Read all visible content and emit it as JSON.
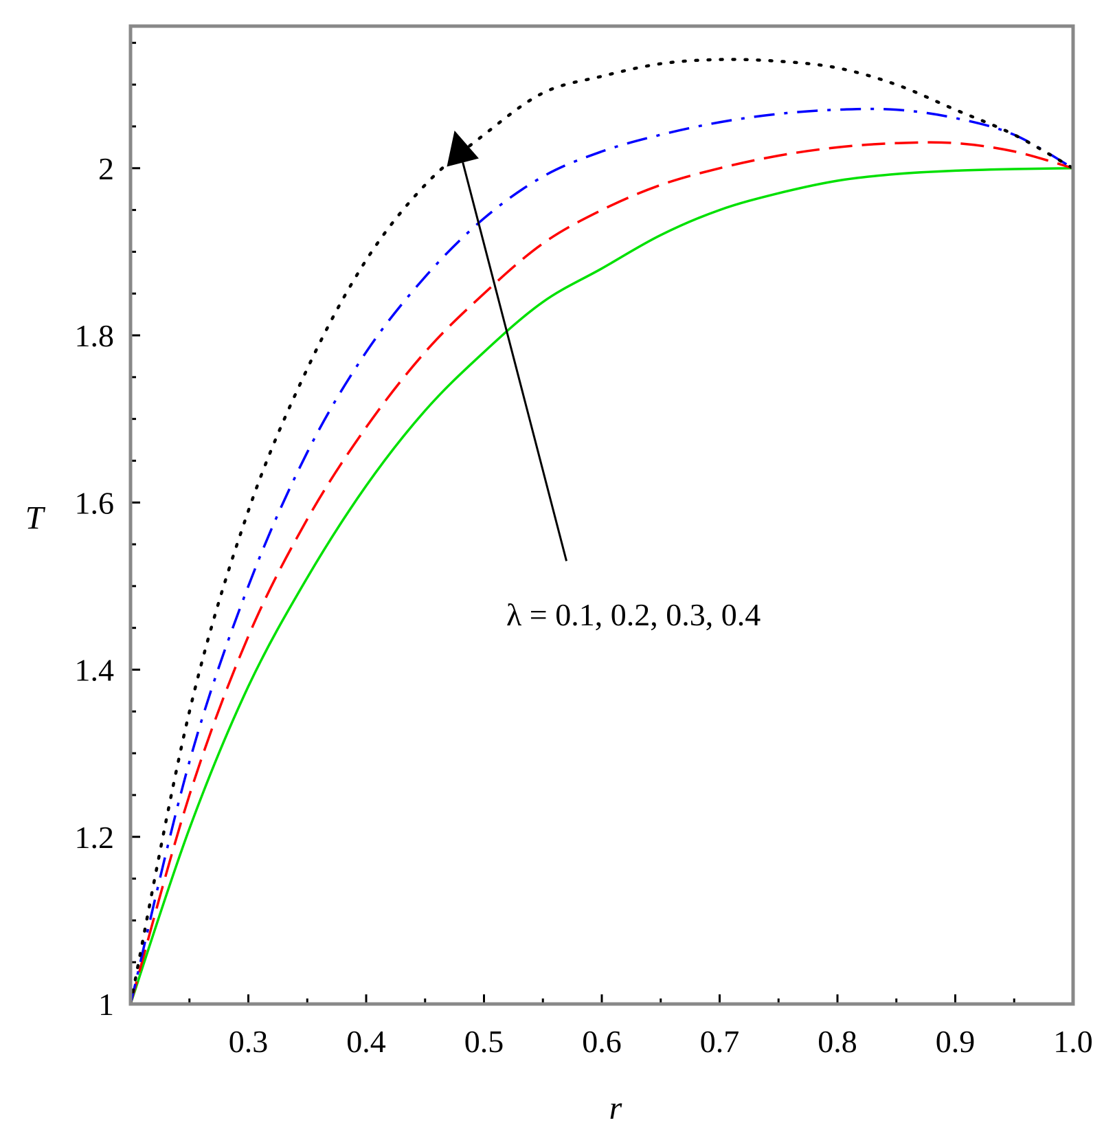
{
  "chart_data": {
    "type": "line",
    "title": "",
    "xlabel": "r",
    "ylabel": "T",
    "xlim": [
      0.2,
      1.0
    ],
    "ylim": [
      1.0,
      2.17
    ],
    "grid": false,
    "x_ticks": [
      0.3,
      0.4,
      0.5,
      0.6,
      0.7,
      0.8,
      0.9,
      1.0
    ],
    "x_tick_labels": [
      "0.3",
      "0.4",
      "0.5",
      "0.6",
      "0.7",
      "0.8",
      "0.9",
      "1.0"
    ],
    "y_ticks": [
      1.0,
      1.2,
      1.4,
      1.6,
      1.8,
      2.0
    ],
    "y_tick_labels": [
      "1",
      "1.2",
      "1.4",
      "1.6",
      "1.8",
      "2"
    ],
    "annotation": {
      "text": "λ = 0.1, 0.2, 0.3, 0.4",
      "arrow_from": [
        0.57,
        1.53
      ],
      "arrow_to": [
        0.475,
        2.045
      ]
    },
    "series": [
      {
        "color": "#00e000",
        "style": "solid",
        "x": [
          0.2,
          0.25,
          0.3,
          0.35,
          0.4,
          0.45,
          0.5,
          0.55,
          0.6,
          0.65,
          0.7,
          0.75,
          0.8,
          0.85,
          0.9,
          0.95,
          1.0
        ],
        "y": [
          1.0,
          1.21,
          1.38,
          1.51,
          1.62,
          1.71,
          1.78,
          1.84,
          1.88,
          1.92,
          1.95,
          1.97,
          1.985,
          1.993,
          1.997,
          1.999,
          2.0
        ]
      },
      {
        "color": "#ff0000",
        "style": "dashed",
        "x": [
          0.2,
          0.25,
          0.3,
          0.35,
          0.4,
          0.45,
          0.5,
          0.55,
          0.6,
          0.65,
          0.7,
          0.75,
          0.8,
          0.85,
          0.9,
          0.95,
          1.0
        ],
        "y": [
          1.0,
          1.25,
          1.44,
          1.58,
          1.69,
          1.78,
          1.85,
          1.91,
          1.95,
          1.98,
          2.0,
          2.015,
          2.025,
          2.03,
          2.03,
          2.02,
          2.0
        ]
      },
      {
        "color": "#0000ff",
        "style": "dashdot",
        "x": [
          0.2,
          0.25,
          0.3,
          0.35,
          0.4,
          0.45,
          0.5,
          0.55,
          0.6,
          0.65,
          0.7,
          0.75,
          0.8,
          0.85,
          0.9,
          0.95,
          1.0
        ],
        "y": [
          1.0,
          1.29,
          1.5,
          1.66,
          1.78,
          1.87,
          1.94,
          1.99,
          2.02,
          2.04,
          2.055,
          2.065,
          2.07,
          2.07,
          2.06,
          2.04,
          2.0
        ]
      },
      {
        "color": "#000000",
        "style": "dotted",
        "x": [
          0.2,
          0.25,
          0.3,
          0.35,
          0.4,
          0.45,
          0.5,
          0.55,
          0.6,
          0.65,
          0.7,
          0.75,
          0.8,
          0.85,
          0.9,
          0.95,
          1.0
        ],
        "y": [
          1.0,
          1.35,
          1.59,
          1.76,
          1.89,
          1.98,
          2.04,
          2.09,
          2.11,
          2.125,
          2.13,
          2.128,
          2.12,
          2.1,
          2.07,
          2.04,
          2.0
        ]
      }
    ]
  }
}
